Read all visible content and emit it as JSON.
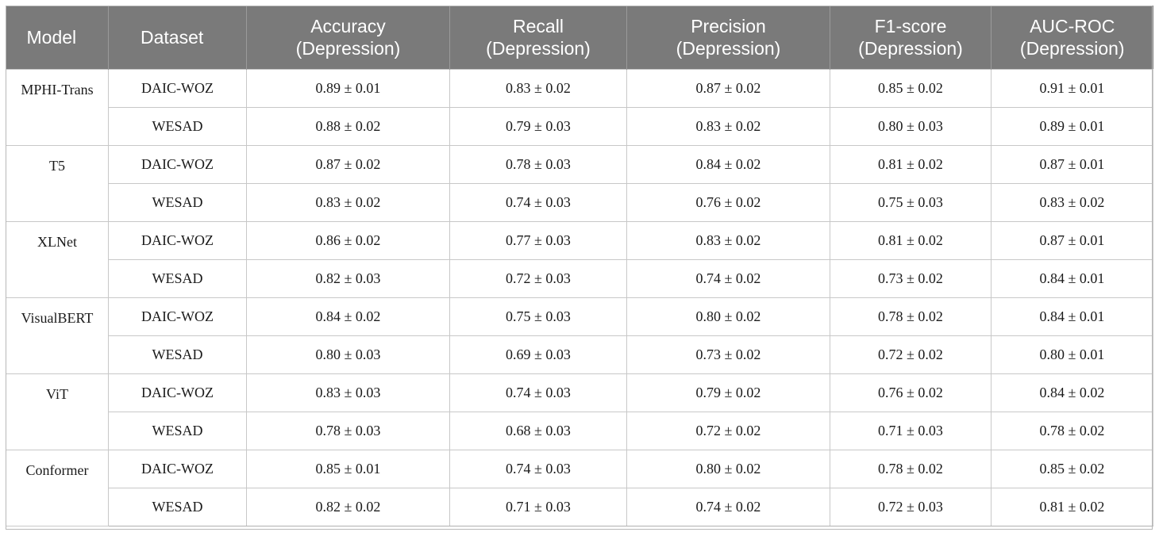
{
  "table": {
    "headers": [
      {
        "line1": "Model",
        "line2": ""
      },
      {
        "line1": "Dataset",
        "line2": ""
      },
      {
        "line1": "Accuracy",
        "line2": "(Depression)"
      },
      {
        "line1": "Recall",
        "line2": "(Depression)"
      },
      {
        "line1": "Precision",
        "line2": "(Depression)"
      },
      {
        "line1": "F1-score",
        "line2": "(Depression)"
      },
      {
        "line1": "AUC-ROC",
        "line2": "(Depression)"
      }
    ],
    "groups": [
      {
        "model": "MPHI-Trans",
        "rows": [
          {
            "dataset": "DAIC-WOZ",
            "accuracy": "0.89 ± 0.01",
            "recall": "0.83 ± 0.02",
            "precision": "0.87 ± 0.02",
            "f1": "0.85 ± 0.02",
            "auc": "0.91 ± 0.01"
          },
          {
            "dataset": "WESAD",
            "accuracy": "0.88 ± 0.02",
            "recall": "0.79 ± 0.03",
            "precision": "0.83 ± 0.02",
            "f1": "0.80 ± 0.03",
            "auc": "0.89 ± 0.01"
          }
        ]
      },
      {
        "model": "T5",
        "rows": [
          {
            "dataset": "DAIC-WOZ",
            "accuracy": "0.87 ± 0.02",
            "recall": "0.78 ± 0.03",
            "precision": "0.84 ± 0.02",
            "f1": "0.81 ± 0.02",
            "auc": "0.87 ± 0.01"
          },
          {
            "dataset": "WESAD",
            "accuracy": "0.83 ± 0.02",
            "recall": "0.74 ± 0.03",
            "precision": "0.76 ± 0.02",
            "f1": "0.75 ± 0.03",
            "auc": "0.83 ± 0.02"
          }
        ]
      },
      {
        "model": "XLNet",
        "rows": [
          {
            "dataset": "DAIC-WOZ",
            "accuracy": "0.86 ± 0.02",
            "recall": "0.77 ± 0.03",
            "precision": "0.83 ± 0.02",
            "f1": "0.81 ± 0.02",
            "auc": "0.87 ± 0.01"
          },
          {
            "dataset": "WESAD",
            "accuracy": "0.82 ± 0.03",
            "recall": "0.72 ± 0.03",
            "precision": "0.74 ± 0.02",
            "f1": "0.73 ± 0.02",
            "auc": "0.84 ± 0.01"
          }
        ]
      },
      {
        "model": "VisualBERT",
        "rows": [
          {
            "dataset": "DAIC-WOZ",
            "accuracy": "0.84 ± 0.02",
            "recall": "0.75 ± 0.03",
            "precision": "0.80 ± 0.02",
            "f1": "0.78 ± 0.02",
            "auc": "0.84 ± 0.01"
          },
          {
            "dataset": "WESAD",
            "accuracy": "0.80 ± 0.03",
            "recall": "0.69 ± 0.03",
            "precision": "0.73 ± 0.02",
            "f1": "0.72 ± 0.02",
            "auc": "0.80 ± 0.01"
          }
        ]
      },
      {
        "model": "ViT",
        "rows": [
          {
            "dataset": "DAIC-WOZ",
            "accuracy": "0.83 ± 0.03",
            "recall": "0.74 ± 0.03",
            "precision": "0.79 ± 0.02",
            "f1": "0.76 ± 0.02",
            "auc": "0.84 ± 0.02"
          },
          {
            "dataset": "WESAD",
            "accuracy": "0.78 ± 0.03",
            "recall": "0.68 ± 0.03",
            "precision": "0.72 ± 0.02",
            "f1": "0.71 ± 0.03",
            "auc": "0.78 ± 0.02"
          }
        ]
      },
      {
        "model": "Conformer",
        "rows": [
          {
            "dataset": "DAIC-WOZ",
            "accuracy": "0.85 ± 0.01",
            "recall": "0.74 ± 0.03",
            "precision": "0.80 ± 0.02",
            "f1": "0.78 ± 0.02",
            "auc": "0.85 ± 0.02"
          },
          {
            "dataset": "WESAD",
            "accuracy": "0.82 ± 0.02",
            "recall": "0.71 ± 0.03",
            "precision": "0.74 ± 0.02",
            "f1": "0.72 ± 0.03",
            "auc": "0.81 ± 0.02"
          }
        ]
      }
    ]
  }
}
